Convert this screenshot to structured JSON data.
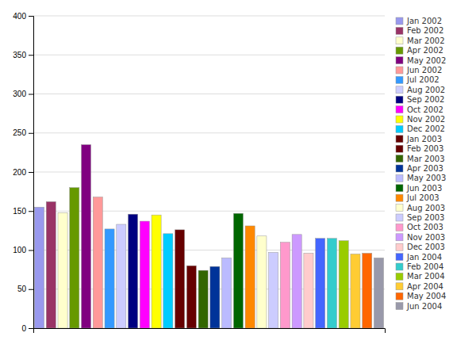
{
  "chart_data": {
    "type": "bar",
    "categories": [
      "Jan 2002",
      "Feb 2002",
      "Mar 2002",
      "Apr 2002",
      "May 2002",
      "Jun 2002",
      "Jul 2002",
      "Aug 2002",
      "Sep 2002",
      "Oct 2002",
      "Nov 2002",
      "Dec 2002",
      "Jan 2003",
      "Feb 2003",
      "Mar 2003",
      "Apr 2003",
      "May 2003",
      "Jun 2003",
      "Jul 2003",
      "Aug 2003",
      "Sep 2003",
      "Oct 2003",
      "Nov 2003",
      "Dec 2003",
      "Jan 2004",
      "Feb 2004",
      "Mar 2004",
      "Apr 2004",
      "May 2004",
      "Jun 2004"
    ],
    "values": [
      155,
      162,
      148,
      180,
      235,
      168,
      127,
      133,
      146,
      137,
      145,
      121,
      126,
      80,
      74,
      79,
      90,
      147,
      131,
      118,
      97,
      110,
      120,
      96,
      115,
      115,
      112,
      95,
      96,
      90
    ],
    "colors": [
      "#9999EE",
      "#993366",
      "#FFFFCC",
      "#669900",
      "#800080",
      "#FF9999",
      "#3399FF",
      "#CCCCFF",
      "#000080",
      "#FF00FF",
      "#FFFF00",
      "#00CCFF",
      "#660000",
      "#660000",
      "#336600",
      "#003399",
      "#BBBBFF",
      "#006600",
      "#FF8800",
      "#FFFFCC",
      "#CCCCFF",
      "#FF99CC",
      "#CC99FF",
      "#FFCCCC",
      "#4466FF",
      "#33CCCC",
      "#99CC00",
      "#FFCC33",
      "#FF6600",
      "#9999AA"
    ],
    "ylim": [
      0,
      400
    ],
    "yticks": [
      0,
      50,
      100,
      150,
      200,
      250,
      300,
      350,
      400
    ],
    "grid": true,
    "legend": "right",
    "tick_labels": "y"
  }
}
